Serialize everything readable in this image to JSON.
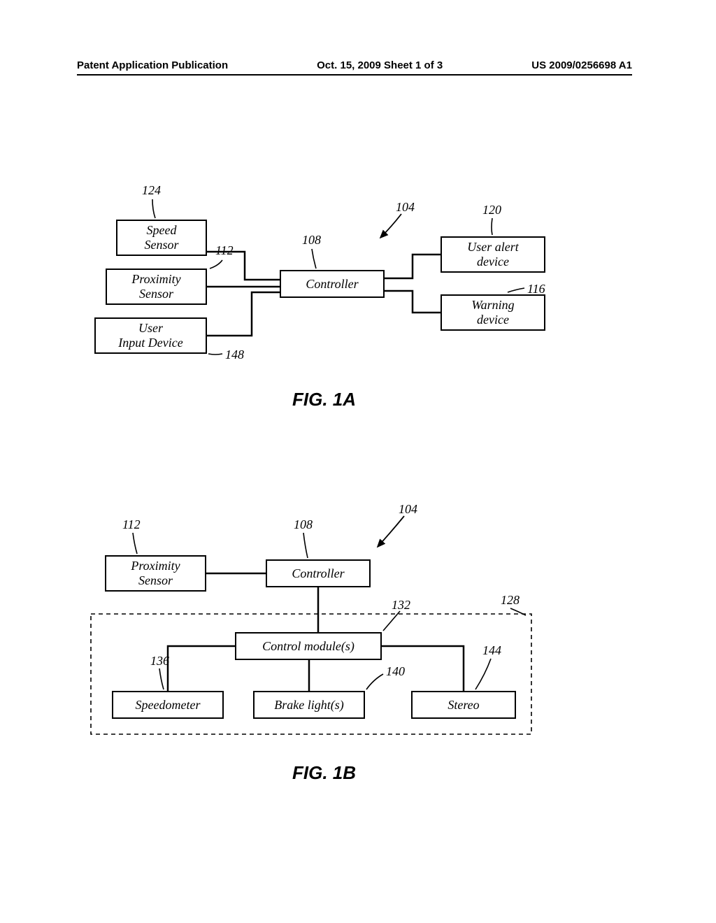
{
  "header": {
    "left": "Patent Application Publication",
    "center": "Oct. 15, 2009  Sheet 1 of 3",
    "right": "US 2009/0256698 A1"
  },
  "figA": {
    "title": "FIG.  1A",
    "boxes": {
      "speed_sensor": {
        "text": "Speed\nSensor",
        "ref": "124"
      },
      "proximity_sensor": {
        "text": "Proximity\nSensor",
        "ref": "112"
      },
      "user_input": {
        "text": "User\nInput Device",
        "ref": "148"
      },
      "controller": {
        "text": "Controller",
        "ref": "108"
      },
      "user_alert": {
        "text": "User alert\ndevice",
        "ref": "120"
      },
      "warning": {
        "text": "Warning\ndevice",
        "ref": "116"
      },
      "system": {
        "ref": "104"
      }
    }
  },
  "figB": {
    "title": "FIG.  1B",
    "boxes": {
      "proximity_sensor": {
        "text": "Proximity\nSensor",
        "ref": "112"
      },
      "controller": {
        "text": "Controller",
        "ref": "108"
      },
      "control_module": {
        "text": "Control module(s)",
        "ref": "132"
      },
      "speedometer": {
        "text": "Speedometer",
        "ref": "136"
      },
      "brake_lights": {
        "text": "Brake light(s)",
        "ref": "140"
      },
      "stereo": {
        "text": "Stereo",
        "ref": "144"
      },
      "vehicle": {
        "ref": "128"
      },
      "system": {
        "ref": "104"
      }
    }
  },
  "style": {
    "box_border": "#000000",
    "line_width": 2.5,
    "dash": "6,4",
    "font_italic": true
  }
}
